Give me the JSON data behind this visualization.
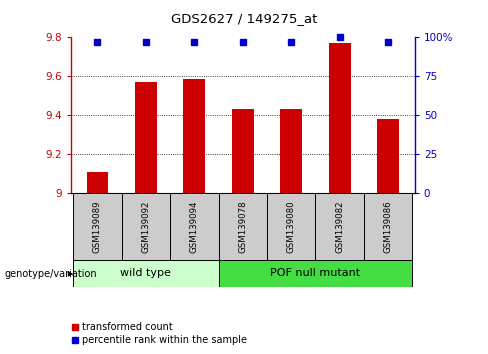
{
  "title": "GDS2627 / 149275_at",
  "samples": [
    "GSM139089",
    "GSM139092",
    "GSM139094",
    "GSM139078",
    "GSM139080",
    "GSM139082",
    "GSM139086"
  ],
  "bar_values": [
    9.11,
    9.57,
    9.585,
    9.43,
    9.43,
    9.77,
    9.38
  ],
  "percentile_values": [
    97,
    97,
    97,
    97,
    97,
    100,
    97
  ],
  "ylim_left": [
    9.0,
    9.8
  ],
  "ylim_right": [
    0,
    100
  ],
  "yticks_left": [
    9.0,
    9.2,
    9.4,
    9.6,
    9.8
  ],
  "ytick_labels_left": [
    "9",
    "9.2",
    "9.4",
    "9.6",
    "9.8"
  ],
  "yticks_right": [
    0,
    25,
    50,
    75,
    100
  ],
  "ytick_labels_right": [
    "0",
    "25",
    "50",
    "75",
    "100%"
  ],
  "bar_color": "#cc0000",
  "dot_color": "#0000cc",
  "grid_color": "#000000",
  "group1_label": "wild type",
  "group2_label": "POF null mutant",
  "group1_color": "#ccffcc",
  "group2_color": "#44dd44",
  "group1_indices": [
    0,
    1,
    2
  ],
  "group2_indices": [
    3,
    4,
    5,
    6
  ],
  "genotype_label": "genotype/variation",
  "legend_red_label": "transformed count",
  "legend_blue_label": "percentile rank within the sample",
  "bar_width": 0.45,
  "background_color": "#ffffff",
  "tick_area_color": "#cccccc"
}
